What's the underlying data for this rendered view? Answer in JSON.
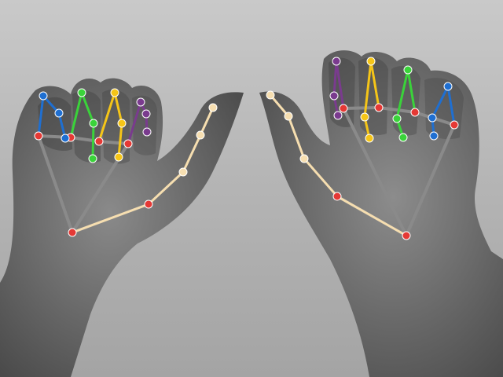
{
  "image": {
    "kind": "photo-with-hand-landmark-overlay",
    "mode": "grayscale-photo",
    "hands_detected": 2,
    "landmarks_per_hand": 21,
    "palette": {
      "wrist_palm": "#e53935",
      "palm_link": "#8a8a8a",
      "thumb": "#f6deb0",
      "index": "#f5c518",
      "middle": "#3ad33a",
      "ring": "#1f6fd1",
      "pinky": "#7a3b8e"
    }
  }
}
